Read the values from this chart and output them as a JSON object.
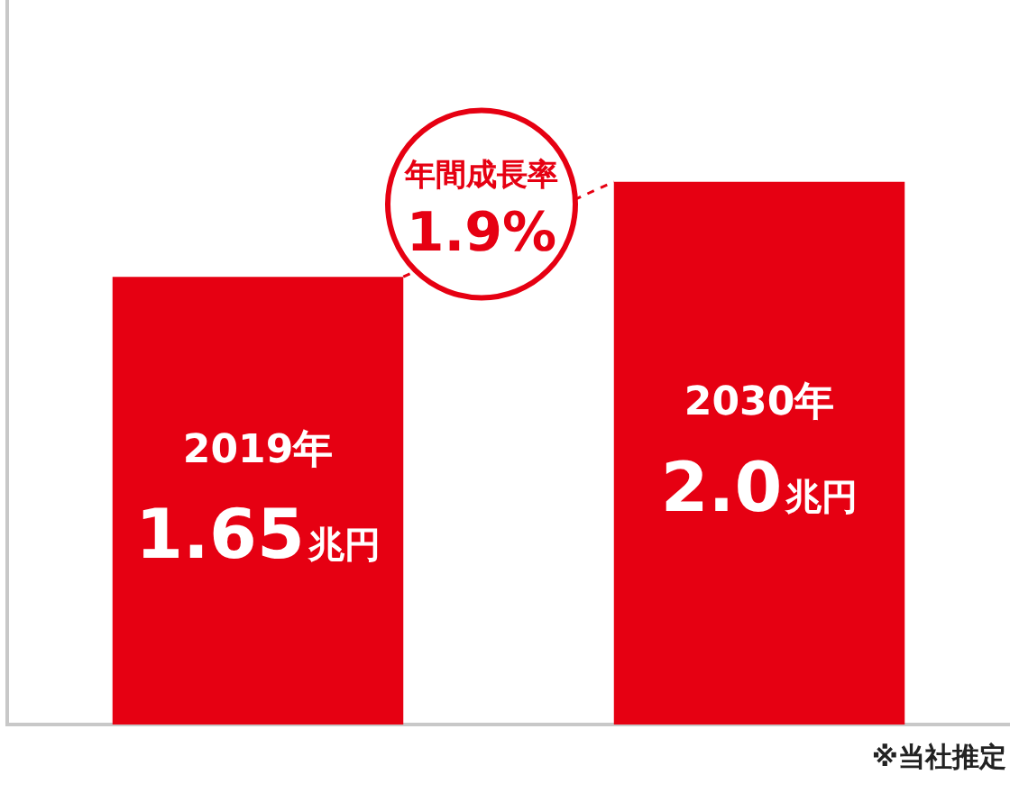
{
  "chart_data": {
    "type": "bar",
    "categories": [
      "2019年",
      "2030年"
    ],
    "values": [
      1.65,
      2.0
    ],
    "value_labels": [
      "1.65兆円",
      "2.0兆円"
    ],
    "color": "#e60012",
    "ylim": [
      0,
      2.67
    ],
    "tick_labels": false,
    "grid": false,
    "legend": false,
    "annotations": [
      "年間成長率 1.9%",
      "※当社推定"
    ]
  }
}
